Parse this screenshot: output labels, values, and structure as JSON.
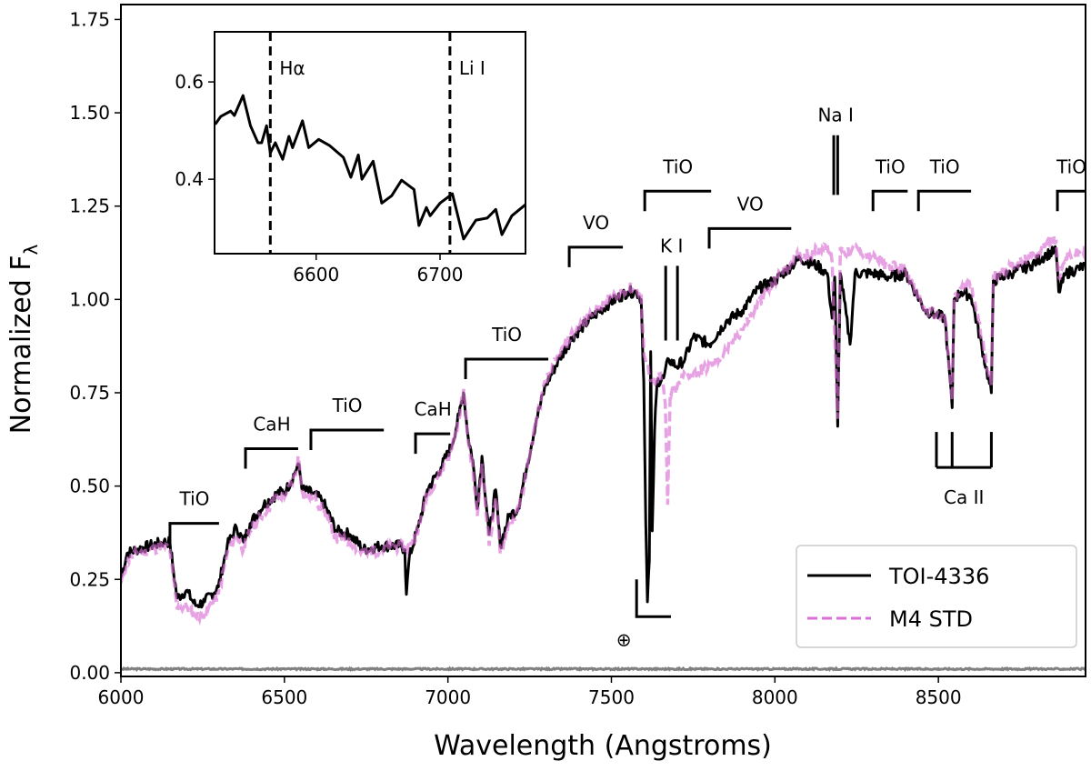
{
  "chart_data": {
    "type": "line",
    "xlabel": "Wavelength (Angstroms)",
    "ylabel": "Normalized F",
    "ylabel_subscript": "λ",
    "xlim": [
      6000,
      8950
    ],
    "ylim": [
      -0.01,
      1.79
    ],
    "xticks": [
      6000,
      6500,
      7000,
      7500,
      8000,
      8500
    ],
    "xtick_labels": [
      "6000",
      "6500",
      "7000",
      "7500",
      "8000",
      "8500"
    ],
    "yticks": [
      0,
      0.25,
      0.5,
      0.75,
      1.0,
      1.25,
      1.5,
      1.75
    ],
    "ytick_labels": [
      "0.00",
      "0.25",
      "0.50",
      "0.75",
      "1.00",
      "1.25",
      "1.50",
      "1.75"
    ],
    "grid": false,
    "legend_position": "bottom-right",
    "series": [
      {
        "name": "TOI-4336",
        "color": "#000000",
        "style": "solid",
        "x": [
          6000,
          6019,
          6047,
          6089,
          6131,
          6150,
          6158,
          6172,
          6200,
          6228,
          6256,
          6298,
          6325,
          6353,
          6375,
          6395,
          6437,
          6478,
          6506,
          6534,
          6542,
          6556,
          6589,
          6617,
          6659,
          6701,
          6742,
          6798,
          6854,
          6868,
          6873,
          6882,
          6909,
          6937,
          6979,
          7012,
          7034,
          7048,
          7062,
          7076,
          7090,
          7104,
          7126,
          7146,
          7160,
          7187,
          7215,
          7243,
          7271,
          7299,
          7340,
          7382,
          7438,
          7493,
          7549,
          7577,
          7591,
          7599,
          7605,
          7610,
          7616,
          7620,
          7625,
          7632,
          7640,
          7660,
          7675,
          7700,
          7725,
          7750,
          7800,
          7850,
          7900,
          7950,
          8000,
          8050,
          8077,
          8130,
          8160,
          8175,
          8183,
          8192,
          8200,
          8230,
          8245,
          8300,
          8350,
          8400,
          8430,
          8460,
          8490,
          8520,
          8542,
          8548,
          8570,
          8600,
          8662,
          8668,
          8720,
          8780,
          8830,
          8860,
          8868,
          8890,
          8920,
          8950
        ],
        "y": [
          0.255,
          0.32,
          0.33,
          0.34,
          0.35,
          0.35,
          0.29,
          0.2,
          0.22,
          0.18,
          0.19,
          0.23,
          0.34,
          0.39,
          0.35,
          0.4,
          0.45,
          0.48,
          0.49,
          0.54,
          0.56,
          0.49,
          0.48,
          0.46,
          0.38,
          0.37,
          0.33,
          0.34,
          0.34,
          0.33,
          0.21,
          0.31,
          0.39,
          0.49,
          0.55,
          0.61,
          0.69,
          0.75,
          0.63,
          0.57,
          0.44,
          0.58,
          0.37,
          0.49,
          0.34,
          0.42,
          0.44,
          0.56,
          0.68,
          0.77,
          0.84,
          0.9,
          0.95,
          0.99,
          1.02,
          1.02,
          1.0,
          0.78,
          0.4,
          0.19,
          0.3,
          0.86,
          0.38,
          0.65,
          0.78,
          0.79,
          0.84,
          0.82,
          0.84,
          0.9,
          0.88,
          0.94,
          0.97,
          1.03,
          1.05,
          1.09,
          1.11,
          1.09,
          1.07,
          0.95,
          1.06,
          0.66,
          1.07,
          0.88,
          1.07,
          1.07,
          1.06,
          1.07,
          1.02,
          0.97,
          0.96,
          0.95,
          0.71,
          1.0,
          1.02,
          1.01,
          0.75,
          1.05,
          1.07,
          1.09,
          1.12,
          1.13,
          1.02,
          1.07,
          1.08,
          1.09
        ]
      },
      {
        "name": "M4 STD",
        "color": "#da70d6",
        "style": "dashed",
        "x": [
          6000,
          6019,
          6047,
          6089,
          6131,
          6150,
          6158,
          6172,
          6200,
          6228,
          6256,
          6298,
          6325,
          6353,
          6375,
          6395,
          6437,
          6478,
          6506,
          6534,
          6542,
          6556,
          6589,
          6617,
          6659,
          6701,
          6742,
          6798,
          6854,
          6873,
          6909,
          6937,
          6979,
          7012,
          7034,
          7048,
          7062,
          7076,
          7090,
          7104,
          7126,
          7146,
          7160,
          7187,
          7215,
          7243,
          7271,
          7299,
          7340,
          7382,
          7438,
          7493,
          7549,
          7577,
          7591,
          7600,
          7615,
          7630,
          7650,
          7665,
          7672,
          7680,
          7700,
          7725,
          7750,
          7800,
          7850,
          7900,
          7950,
          8000,
          8050,
          8077,
          8130,
          8160,
          8175,
          8192,
          8200,
          8230,
          8245,
          8300,
          8350,
          8400,
          8430,
          8460,
          8490,
          8520,
          8542,
          8548,
          8570,
          8600,
          8662,
          8668,
          8720,
          8780,
          8830,
          8860,
          8868,
          8890,
          8920,
          8950
        ],
        "y": [
          0.24,
          0.3,
          0.32,
          0.33,
          0.34,
          0.33,
          0.27,
          0.17,
          0.18,
          0.15,
          0.16,
          0.21,
          0.32,
          0.37,
          0.33,
          0.38,
          0.43,
          0.47,
          0.48,
          0.53,
          0.58,
          0.48,
          0.47,
          0.44,
          0.36,
          0.35,
          0.32,
          0.33,
          0.34,
          0.33,
          0.38,
          0.48,
          0.54,
          0.6,
          0.68,
          0.76,
          0.62,
          0.55,
          0.42,
          0.56,
          0.34,
          0.47,
          0.32,
          0.4,
          0.43,
          0.55,
          0.68,
          0.78,
          0.85,
          0.91,
          0.96,
          1.0,
          1.03,
          1.03,
          1.01,
          0.85,
          0.8,
          0.78,
          0.8,
          0.72,
          0.45,
          0.75,
          0.76,
          0.8,
          0.8,
          0.82,
          0.86,
          0.92,
          0.99,
          1.05,
          1.1,
          1.12,
          1.13,
          1.15,
          1.1,
          0.68,
          1.14,
          1.12,
          1.14,
          1.11,
          1.09,
          1.08,
          1.02,
          0.97,
          0.96,
          0.95,
          0.73,
          1.0,
          1.03,
          1.04,
          0.77,
          1.06,
          1.09,
          1.11,
          1.15,
          1.16,
          1.06,
          1.11,
          1.12,
          1.13
        ]
      },
      {
        "color": "#808080",
        "style": "solid",
        "x": [
          6000,
          8950
        ],
        "y": [
          0.01,
          0.01
        ]
      }
    ],
    "annotations": {
      "bands": [
        {
          "label": "TiO",
          "x0": 6150,
          "x1": 6300,
          "y": 0.4
        },
        {
          "label": "CaH",
          "x0": 6381,
          "x1": 6542,
          "y": 0.6
        },
        {
          "label": "TiO",
          "x0": 6581,
          "x1": 6804,
          "y": 0.65
        },
        {
          "label": "CaH",
          "x0": 6901,
          "x1": 7007,
          "y": 0.64
        },
        {
          "label": "TiO",
          "x0": 7054,
          "x1": 7307,
          "y": 0.84
        },
        {
          "label": "VO",
          "x0": 7371,
          "x1": 7535,
          "y": 1.14
        },
        {
          "label": "TiO",
          "x0": 7602,
          "x1": 7805,
          "y": 1.29
        },
        {
          "label": "VO",
          "x0": 7799,
          "x1": 8050,
          "y": 1.19
        },
        {
          "label": "TiO",
          "x0": 8300,
          "x1": 8406,
          "y": 1.29
        },
        {
          "label": "TiO",
          "x0": 8439,
          "x1": 8600,
          "y": 1.29
        },
        {
          "label": "TiO",
          "x0": 8864,
          "x1": 8950,
          "y": 1.29
        }
      ],
      "lines": [
        {
          "label": "K I",
          "x": [
            7666,
            7702
          ],
          "y0": 0.89,
          "y1": 1.09,
          "label_pos": "top"
        },
        {
          "label": "Na I",
          "x": [
            8180,
            8192
          ],
          "y0": 1.28,
          "y1": 1.44,
          "label_pos": "top"
        },
        {
          "label": "Ca II",
          "x": [
            8494,
            8542,
            8662
          ],
          "y0": 0.55,
          "y1": 0.645,
          "label_pos": "bottom"
        }
      ],
      "telluric": {
        "label": "⊕",
        "x0": 7577,
        "x1": 7682,
        "y0": 0.15,
        "y1": 0.25
      }
    },
    "inset": {
      "xlim": [
        6518,
        6769
      ],
      "ylim": [
        0.247,
        0.703
      ],
      "xticks": [
        6600,
        6700
      ],
      "xtick_labels": [
        "6600",
        "6700"
      ],
      "yticks": [
        0.4,
        0.6
      ],
      "ytick_labels": [
        "0.4",
        "0.6"
      ],
      "markers": [
        {
          "label": "Hα",
          "x": 6563
        },
        {
          "label": "Li I",
          "x": 6708
        }
      ],
      "series": {
        "color": "#000000",
        "x": [
          6518.5,
          6523,
          6531,
          6534,
          6541,
          6547,
          6553,
          6556,
          6560,
          6563,
          6567,
          6573,
          6578,
          6581,
          6589,
          6594,
          6602,
          6611,
          6622,
          6628,
          6634,
          6637,
          6646,
          6653,
          6661,
          6669,
          6679,
          6683,
          6689,
          6692,
          6700,
          6710,
          6719,
          6729,
          6738,
          6745,
          6750,
          6758,
          6769
        ],
        "y": [
          0.513,
          0.529,
          0.54,
          0.531,
          0.572,
          0.51,
          0.475,
          0.475,
          0.51,
          0.454,
          0.475,
          0.441,
          0.488,
          0.465,
          0.52,
          0.465,
          0.482,
          0.469,
          0.445,
          0.404,
          0.45,
          0.4,
          0.437,
          0.351,
          0.366,
          0.398,
          0.379,
          0.305,
          0.342,
          0.325,
          0.351,
          0.37,
          0.277,
          0.316,
          0.32,
          0.338,
          0.286,
          0.325,
          0.348
        ]
      }
    }
  }
}
